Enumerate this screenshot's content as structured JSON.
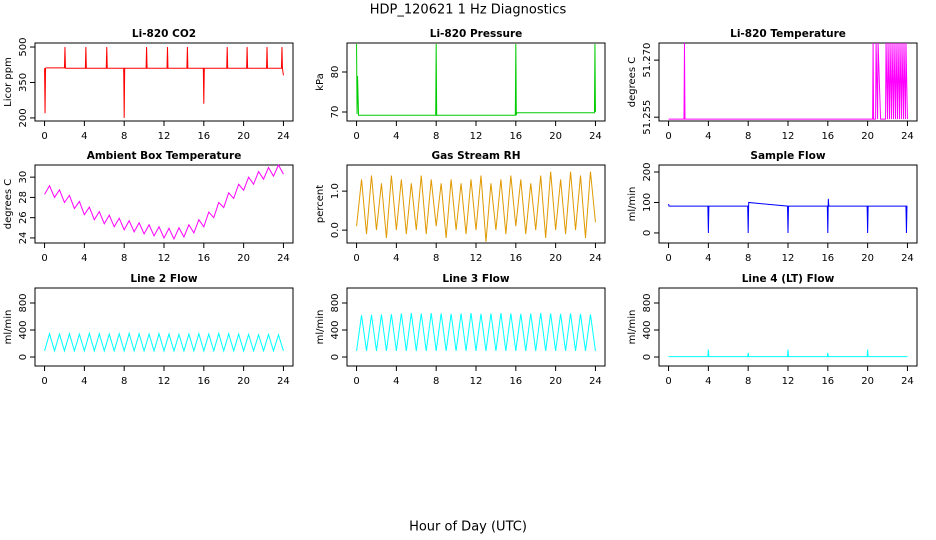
{
  "title": "HDP_120621  1 Hz Diagnostics",
  "xlabel": "Hour of Day (UTC)",
  "chart_data": [
    {
      "type": "line",
      "title": "Li-820 CO2",
      "ylabel": "Licor ppm",
      "x": [
        0,
        0.05,
        0.1,
        0.15,
        2,
        2.05,
        2.1,
        4.1,
        4.15,
        4.2,
        6.2,
        6.25,
        6.3,
        7.95,
        8,
        8.05,
        10.2,
        10.25,
        10.3,
        12.3,
        12.35,
        12.4,
        14.3,
        14.35,
        14.4,
        15.95,
        16,
        16.05,
        18.3,
        18.35,
        18.4,
        20.3,
        20.35,
        20.4,
        22.3,
        22.35,
        22.4,
        23.8,
        23.85,
        23.9,
        24
      ],
      "series": [
        {
          "color": "#ff0000",
          "values": [
            410,
            220,
            410,
            412,
            412,
            500,
            410,
            410,
            500,
            410,
            410,
            500,
            410,
            410,
            200,
            410,
            410,
            500,
            410,
            410,
            500,
            410,
            410,
            500,
            410,
            410,
            260,
            410,
            410,
            500,
            410,
            410,
            500,
            410,
            410,
            500,
            410,
            410,
            500,
            410,
            380
          ]
        }
      ],
      "xlim": [
        -0.96,
        24.96
      ],
      "xticks": [
        0,
        4,
        8,
        12,
        16,
        20,
        24
      ],
      "ylim": [
        187,
        517
      ],
      "yticks": [
        200,
        350,
        500
      ]
    },
    {
      "type": "line",
      "title": "Li-820 Pressure",
      "ylabel": "kPa",
      "x": [
        0,
        0.05,
        0.1,
        0.2,
        7.95,
        8,
        8.05,
        15.95,
        16,
        16.05,
        16.1,
        23.9,
        23.95,
        24
      ],
      "series": [
        {
          "color": "#00cc00",
          "values": [
            87,
            69.5,
            79,
            69.2,
            69.2,
            87,
            69.2,
            69.2,
            87,
            69.2,
            69.8,
            69.8,
            87,
            70
          ]
        }
      ],
      "xlim": [
        -0.96,
        24.96
      ],
      "xticks": [
        0,
        4,
        8,
        12,
        16,
        20,
        24
      ],
      "ylim": [
        67.75,
        87.25
      ],
      "yticks": [
        70,
        80
      ]
    },
    {
      "type": "line",
      "title": "Li-820 Temperature",
      "ylabel": "degrees C",
      "x": [
        0,
        1.55,
        1.6,
        1.65,
        20.5,
        20.55,
        20.6,
        20.8,
        20.85,
        21,
        21.05,
        21.3,
        21.8,
        21.85,
        22,
        22.05,
        22.2,
        22.25,
        22.4,
        22.45,
        22.6,
        22.65,
        22.8,
        22.85,
        23,
        23.05,
        23.2,
        23.25,
        23.4,
        23.45,
        23.6,
        23.65,
        23.8,
        23.85,
        24
      ],
      "series": [
        {
          "color": "#ff00ff",
          "values": [
            51.2545,
            51.2545,
            51.2745,
            51.2545,
            51.2545,
            51.2745,
            51.2545,
            51.2545,
            51.2745,
            51.2545,
            51.2745,
            51.2545,
            51.2545,
            51.2745,
            51.2545,
            51.2745,
            51.2545,
            51.2745,
            51.2545,
            51.2745,
            51.2545,
            51.2745,
            51.2545,
            51.2745,
            51.2545,
            51.2745,
            51.2545,
            51.2745,
            51.2545,
            51.2745,
            51.2545,
            51.2745,
            51.2545,
            51.2745,
            51.2545
          ]
        }
      ],
      "xlim": [
        -0.96,
        24.96
      ],
      "xticks": [
        0,
        4,
        8,
        12,
        16,
        20,
        24
      ],
      "ylim": [
        51.254,
        51.2745
      ],
      "yticks": [
        51.255,
        {
          "value": 51.27,
          "label": "51.270"
        }
      ]
    },
    {
      "type": "line",
      "title": "Ambient Box Temperature",
      "ylabel": "degrees C",
      "x": [
        0,
        0.5,
        1,
        1.5,
        2,
        2.5,
        3,
        3.5,
        4,
        4.5,
        5,
        5.5,
        6,
        6.5,
        7,
        7.5,
        8,
        8.5,
        9,
        9.5,
        10,
        10.5,
        11,
        11.5,
        12,
        12.5,
        13,
        13.5,
        14,
        14.5,
        15,
        15.5,
        16,
        16.5,
        17,
        17.5,
        18,
        18.5,
        19,
        19.5,
        20,
        20.5,
        21,
        21.5,
        22,
        22.5,
        23,
        23.5,
        24
      ],
      "series": [
        {
          "color": "#ff00ff",
          "values": [
            28.3,
            29.15,
            28.0,
            28.75,
            27.5,
            28.2,
            26.9,
            27.6,
            26.3,
            27.05,
            25.8,
            26.6,
            25.4,
            26.25,
            25.1,
            25.95,
            24.8,
            25.7,
            24.6,
            25.5,
            24.4,
            25.3,
            24.2,
            25.1,
            24.0,
            24.95,
            23.9,
            25.0,
            24.1,
            25.3,
            24.5,
            25.8,
            25.1,
            26.55,
            26.0,
            27.5,
            27.0,
            28.45,
            27.9,
            29.3,
            28.7,
            30.0,
            29.3,
            30.55,
            29.8,
            30.95,
            30.1,
            31.2,
            30.3
          ]
        }
      ],
      "xlim": [
        -0.96,
        24.96
      ],
      "xticks": [
        0,
        4,
        8,
        12,
        16,
        20,
        24
      ],
      "ylim": [
        23.5,
        31.2
      ],
      "yticks": [
        24,
        26,
        28,
        30
      ]
    },
    {
      "type": "line",
      "title": "Gas Stream RH",
      "ylabel": "percent",
      "x": [
        0,
        0.5,
        1,
        1.5,
        2,
        2.5,
        3,
        3.5,
        4,
        4.5,
        5,
        5.5,
        6,
        6.5,
        7,
        7.5,
        8,
        8.5,
        9,
        9.5,
        10,
        10.5,
        11,
        11.5,
        12,
        12.5,
        13,
        13.5,
        14,
        14.5,
        15,
        15.5,
        16,
        16.5,
        17,
        17.5,
        18,
        18.5,
        19,
        19.5,
        20,
        20.5,
        21,
        21.5,
        22,
        22.5,
        23,
        23.5,
        24
      ],
      "series": [
        {
          "color": "#e09a00",
          "values": [
            0.1,
            1.3,
            -0.1,
            1.4,
            0.0,
            1.2,
            -0.2,
            1.4,
            0.0,
            1.3,
            -0.1,
            1.2,
            0.0,
            1.4,
            -0.1,
            1.3,
            0.1,
            1.2,
            -0.2,
            1.3,
            0.0,
            1.2,
            -0.1,
            1.3,
            0.0,
            1.4,
            -0.3,
            1.2,
            0.0,
            1.3,
            -0.1,
            1.4,
            0.1,
            1.3,
            -0.1,
            1.2,
            0.0,
            1.4,
            -0.2,
            1.5,
            0.0,
            1.3,
            -0.1,
            1.5,
            0.0,
            1.4,
            -0.2,
            1.5,
            0.2
          ]
        }
      ],
      "xlim": [
        -0.96,
        24.96
      ],
      "xticks": [
        0,
        4,
        8,
        12,
        16,
        20,
        24
      ],
      "ylim": [
        -0.33,
        1.67
      ],
      "yticks": [
        {
          "value": 0,
          "label": "0.0"
        },
        {
          "value": 1,
          "label": "1.0"
        }
      ]
    },
    {
      "type": "line",
      "title": "Sample Flow",
      "ylabel": "ml/min",
      "x": [
        0,
        0.05,
        3.95,
        4,
        4.05,
        7.95,
        8,
        8.05,
        11.95,
        12,
        12.05,
        15.95,
        16,
        16.05,
        16.1,
        19.95,
        20,
        20.05,
        23.85,
        23.9,
        23.95,
        24
      ],
      "series": [
        {
          "color": "#0000ff",
          "values": [
            95,
            88,
            88,
            0,
            88,
            88,
            0,
            100,
            88,
            0,
            88,
            88,
            0,
            112,
            88,
            88,
            0,
            88,
            88,
            0,
            88,
            88
          ]
        }
      ],
      "xlim": [
        -0.96,
        24.96
      ],
      "xticks": [
        0,
        4,
        8,
        12,
        16,
        20,
        24
      ],
      "ylim": [
        -33,
        223
      ],
      "yticks": [
        0,
        100,
        200
      ]
    },
    {
      "type": "line",
      "title": "Line 2 Flow",
      "ylabel": "ml/min",
      "x": [
        0,
        0.5,
        1,
        1.5,
        2,
        2.5,
        3,
        3.5,
        4,
        4.5,
        5,
        5.5,
        6,
        6.5,
        7,
        7.5,
        8,
        8.5,
        9,
        9.5,
        10,
        10.5,
        11,
        11.5,
        12,
        12.5,
        13,
        13.5,
        14,
        14.5,
        15,
        15.5,
        16,
        16.5,
        17,
        17.5,
        18,
        18.5,
        19,
        19.5,
        20,
        20.5,
        21,
        21.5,
        22,
        22.5,
        23,
        23.5,
        24
      ],
      "series": [
        {
          "color": "#00ffff",
          "values": [
            90,
            345,
            90,
            340,
            90,
            345,
            90,
            340,
            90,
            350,
            90,
            345,
            90,
            340,
            90,
            345,
            90,
            350,
            90,
            345,
            90,
            340,
            90,
            345,
            90,
            340,
            90,
            335,
            90,
            340,
            90,
            345,
            90,
            340,
            90,
            350,
            90,
            345,
            90,
            340,
            90,
            335,
            90,
            330,
            90,
            335,
            90,
            330,
            90
          ]
        }
      ],
      "xlim": [
        -0.96,
        24.96
      ],
      "xticks": [
        0,
        4,
        8,
        12,
        16,
        20,
        24
      ],
      "ylim": [
        -133,
        1022
      ],
      "yticks": [
        0,
        400,
        800
      ]
    },
    {
      "type": "line",
      "title": "Line 3 Flow",
      "ylabel": "ml/min",
      "x": [
        0,
        0.5,
        1,
        1.5,
        2,
        2.5,
        3,
        3.5,
        4,
        4.5,
        5,
        5.5,
        6,
        6.5,
        7,
        7.5,
        8,
        8.5,
        9,
        9.5,
        10,
        10.5,
        11,
        11.5,
        12,
        12.5,
        13,
        13.5,
        14,
        14.5,
        15,
        15.5,
        16,
        16.5,
        17,
        17.5,
        18,
        18.5,
        19,
        19.5,
        20,
        20.5,
        21,
        21.5,
        22,
        22.5,
        23,
        23.5,
        24
      ],
      "series": [
        {
          "color": "#00ffff",
          "values": [
            90,
            620,
            90,
            625,
            90,
            630,
            90,
            635,
            90,
            645,
            90,
            650,
            90,
            645,
            90,
            650,
            90,
            645,
            90,
            640,
            90,
            645,
            90,
            650,
            90,
            640,
            90,
            645,
            90,
            650,
            90,
            645,
            90,
            640,
            90,
            645,
            90,
            650,
            90,
            645,
            90,
            640,
            90,
            645,
            90,
            640,
            90,
            630,
            90
          ]
        }
      ],
      "xlim": [
        -0.96,
        24.96
      ],
      "xticks": [
        0,
        4,
        8,
        12,
        16,
        20,
        24
      ],
      "ylim": [
        -133,
        1022
      ],
      "yticks": [
        0,
        400,
        800
      ]
    },
    {
      "type": "line",
      "title": "Line 4 (LT) Flow",
      "ylabel": "ml/min",
      "x": [
        0,
        3.95,
        4,
        4.05,
        7.95,
        8,
        8.05,
        11.95,
        12,
        12.05,
        15.95,
        16,
        16.05,
        19.95,
        20,
        20.05,
        24
      ],
      "series": [
        {
          "color": "#00ffff",
          "values": [
            5,
            5,
            110,
            5,
            5,
            60,
            5,
            5,
            110,
            5,
            5,
            60,
            5,
            5,
            110,
            5,
            5
          ]
        }
      ],
      "xlim": [
        -0.96,
        24.96
      ],
      "xticks": [
        0,
        4,
        8,
        12,
        16,
        20,
        24
      ],
      "ylim": [
        -133,
        1022
      ],
      "yticks": [
        0,
        400,
        800
      ]
    }
  ]
}
